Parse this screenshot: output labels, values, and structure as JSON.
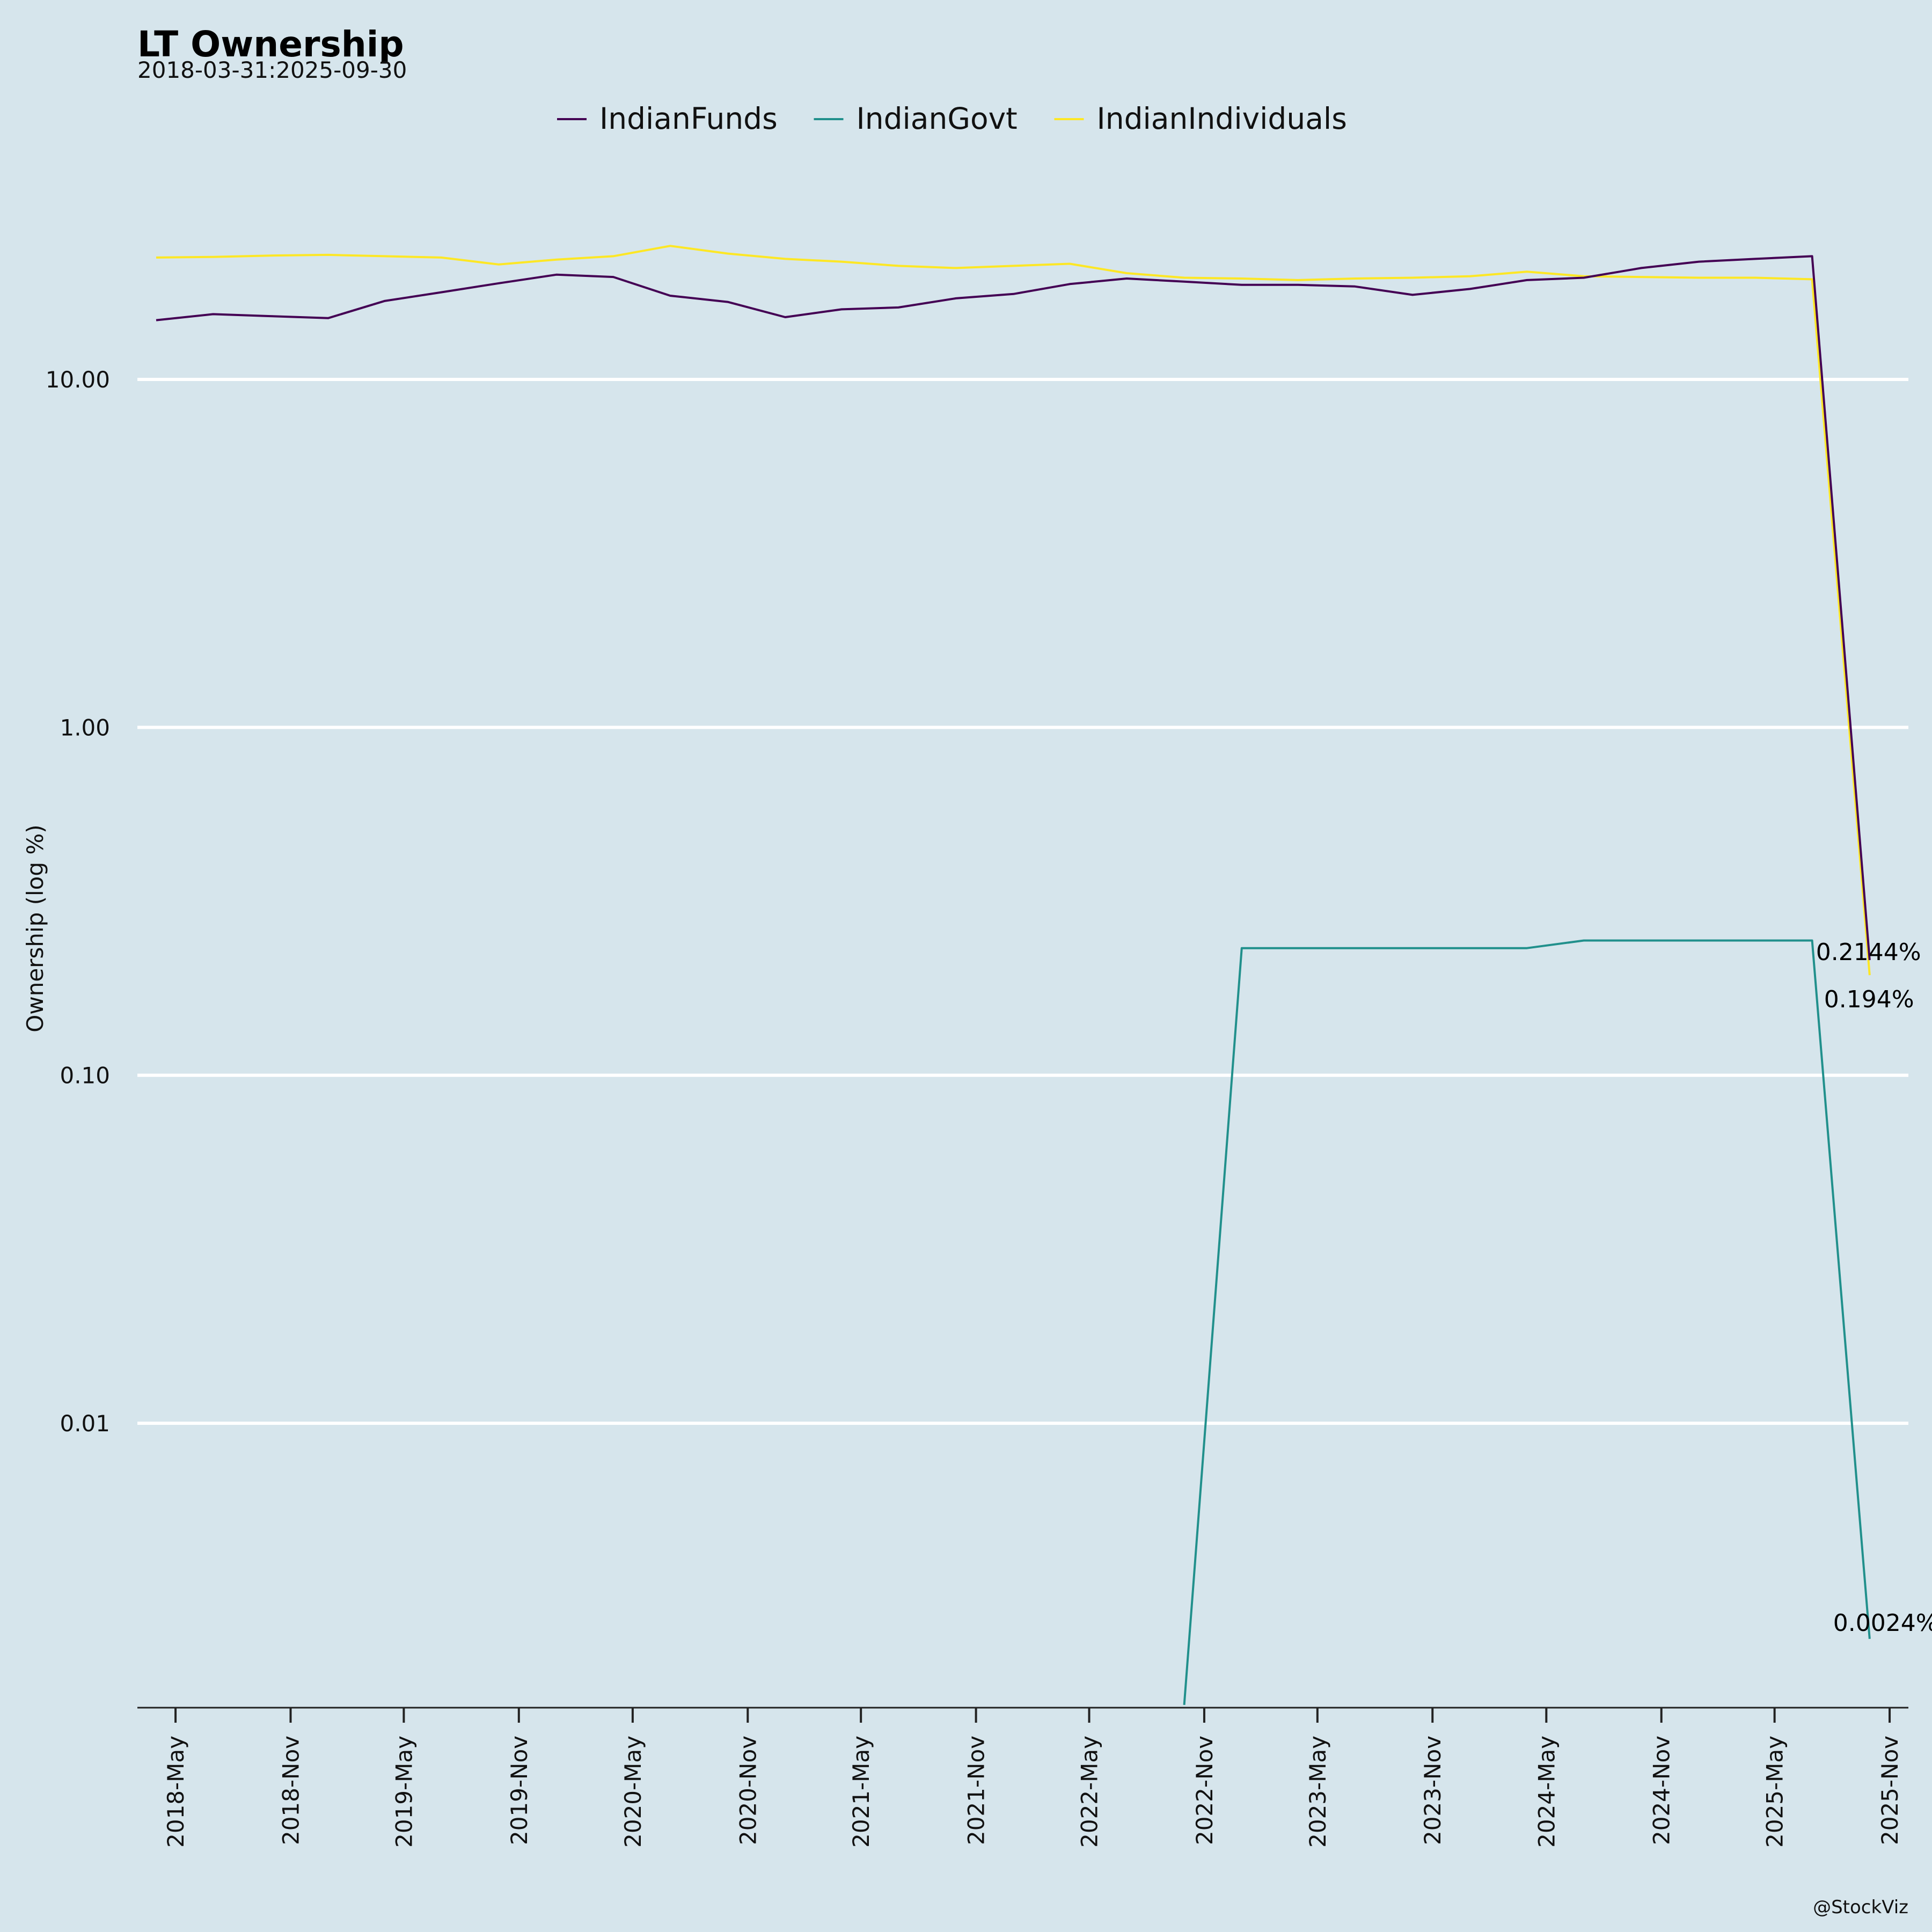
{
  "chart_data": {
    "type": "line",
    "title": "LT Ownership",
    "subtitle": "2018-03-31:2025-09-30",
    "ylabel": "Ownership (log %)",
    "xlabel": "",
    "y_scale": "log",
    "ylim": [
      0.00155,
      60
    ],
    "y_ticks": [
      10,
      1,
      0.1,
      0.01
    ],
    "y_tick_labels": [
      "10.00",
      "1.00",
      "0.10",
      "0.01"
    ],
    "x_range": [
      "2018-03-01",
      "2025-12-01"
    ],
    "x_ticks": [
      "2018-05-01",
      "2018-11-01",
      "2019-05-01",
      "2019-11-01",
      "2020-05-01",
      "2020-11-01",
      "2021-05-01",
      "2021-11-01",
      "2022-05-01",
      "2022-11-01",
      "2023-05-01",
      "2023-11-01",
      "2024-05-01",
      "2024-11-01",
      "2025-05-01",
      "2025-11-01"
    ],
    "x_tick_labels": [
      "2018-May",
      "2018-Nov",
      "2019-May",
      "2019-Nov",
      "2020-May",
      "2020-Nov",
      "2021-May",
      "2021-Nov",
      "2022-May",
      "2022-Nov",
      "2023-May",
      "2023-Nov",
      "2024-May",
      "2024-Nov",
      "2025-May",
      "2025-Nov"
    ],
    "grid": "horizontal",
    "legend_position": "top",
    "x": [
      "2018-03-31",
      "2018-06-30",
      "2018-09-30",
      "2018-12-31",
      "2019-03-31",
      "2019-06-30",
      "2019-09-30",
      "2019-12-31",
      "2020-03-31",
      "2020-06-30",
      "2020-09-30",
      "2020-12-31",
      "2021-03-31",
      "2021-06-30",
      "2021-09-30",
      "2021-12-31",
      "2022-03-31",
      "2022-06-30",
      "2022-09-30",
      "2022-12-31",
      "2023-03-31",
      "2023-06-30",
      "2023-09-30",
      "2023-12-31",
      "2024-03-31",
      "2024-06-30",
      "2024-09-30",
      "2024-12-31",
      "2025-03-31",
      "2025-06-30",
      "2025-09-30"
    ],
    "series": [
      {
        "name": "IndianFunds",
        "color": "#440154",
        "values": [
          14.8,
          15.4,
          15.2,
          15.0,
          16.8,
          17.8,
          18.9,
          20.0,
          19.7,
          17.4,
          16.7,
          15.1,
          15.9,
          16.1,
          17.1,
          17.6,
          18.8,
          19.5,
          19.1,
          18.7,
          18.7,
          18.5,
          17.5,
          18.2,
          19.3,
          19.6,
          20.9,
          21.8,
          22.2,
          22.6,
          0.2144
        ]
      },
      {
        "name": "IndianGovt",
        "color": "#21908c",
        "values": [
          null,
          null,
          null,
          null,
          null,
          null,
          null,
          null,
          null,
          null,
          null,
          null,
          null,
          null,
          null,
          null,
          null,
          null,
          0.00155,
          0.232,
          0.232,
          0.232,
          0.232,
          0.232,
          0.232,
          0.244,
          0.244,
          0.244,
          0.244,
          0.244,
          0.0024
        ]
      },
      {
        "name": "IndianIndividuals",
        "color": "#fde725",
        "values": [
          22.4,
          22.5,
          22.7,
          22.8,
          22.6,
          22.4,
          21.4,
          22.1,
          22.6,
          24.2,
          23.0,
          22.2,
          21.8,
          21.2,
          20.9,
          21.2,
          21.5,
          20.2,
          19.6,
          19.5,
          19.3,
          19.5,
          19.6,
          19.8,
          20.4,
          19.8,
          19.7,
          19.6,
          19.6,
          19.4,
          0.194
        ]
      }
    ],
    "annotations": [
      {
        "series": "IndianFunds",
        "text": "0.2144%",
        "x": "2025-09-30",
        "y": 0.2144
      },
      {
        "series": "IndianIndividuals",
        "text": "0.194%",
        "x": "2025-09-30",
        "y": 0.194
      },
      {
        "series": "IndianGovt",
        "text": "0.0024%",
        "x": "2025-09-30",
        "y": 0.0024
      }
    ]
  },
  "credit": "@StockViz"
}
